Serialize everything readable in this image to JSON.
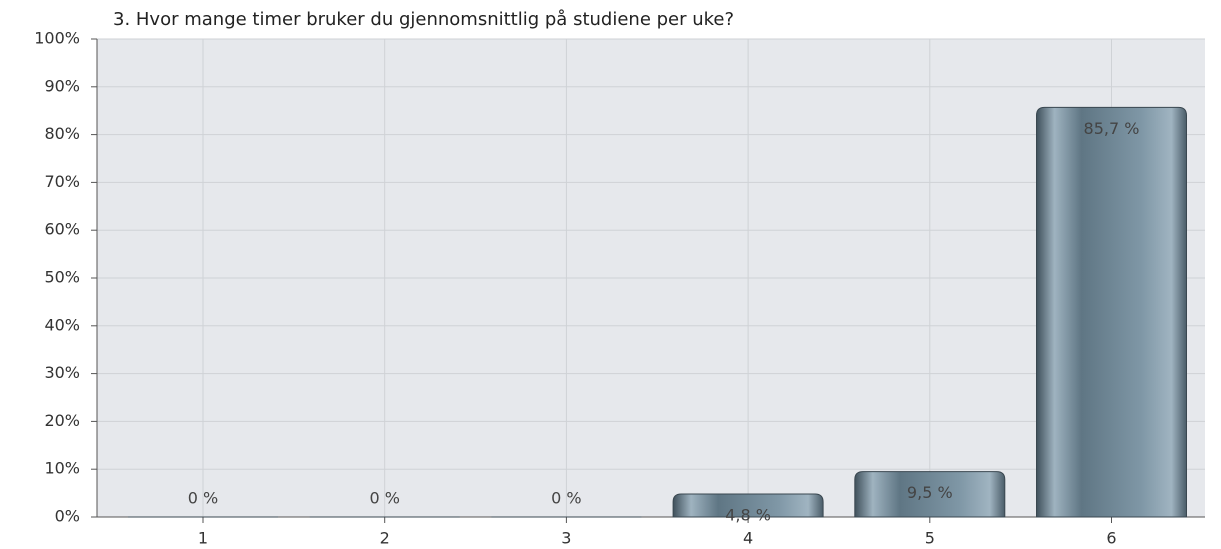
{
  "chart_data": {
    "type": "bar",
    "title": "3. Hvor mange timer bruker du gjennomsnittlig på studiene per uke?",
    "categories": [
      "1",
      "2",
      "3",
      "4",
      "5",
      "6"
    ],
    "values": [
      0,
      0,
      0,
      4.8,
      9.5,
      85.7
    ],
    "value_labels": [
      "0 %",
      "0 %",
      "0 %",
      "4,8 %",
      "9,5 %",
      "85,7 %"
    ],
    "color": "#6e8594",
    "ylim": [
      0,
      100
    ],
    "yticks": [
      {
        "value": 0,
        "label": "0%"
      },
      {
        "value": 10,
        "label": "10%"
      },
      {
        "value": 20,
        "label": "20%"
      },
      {
        "value": 30,
        "label": "30%"
      },
      {
        "value": 40,
        "label": "40%"
      },
      {
        "value": 50,
        "label": "50%"
      },
      {
        "value": 60,
        "label": "60%"
      },
      {
        "value": 70,
        "label": "70%"
      },
      {
        "value": 80,
        "label": "80%"
      },
      {
        "value": 90,
        "label": "90%"
      },
      {
        "value": 100,
        "label": "100%"
      }
    ],
    "grid": true
  }
}
